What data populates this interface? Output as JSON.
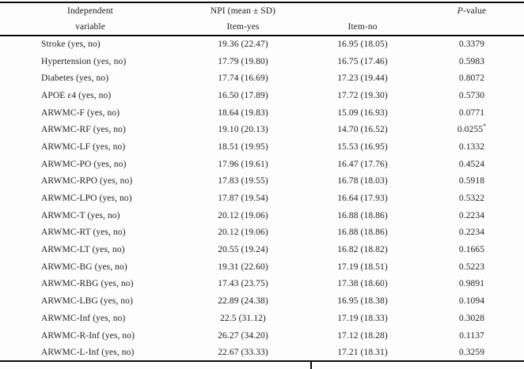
{
  "table": {
    "header": {
      "col1_line1": "Independent",
      "col1_line2": "variable",
      "npi_group": "NPI (mean ± SD)",
      "item_yes": "Item-yes",
      "item_no": "Item-no",
      "p_italic": "P",
      "p_suffix": "-value"
    },
    "rows": [
      {
        "variable": "Stroke (yes, no)",
        "item_yes": "19.36 (22.47)",
        "item_no": "16.95 (18.05)",
        "p": "0.3379"
      },
      {
        "variable": "Hypertension (yes, no)",
        "item_yes": "17.79 (19.80)",
        "item_no": "16.75 (17.46)",
        "p": "0.5983"
      },
      {
        "variable": "Diabetes (yes, no)",
        "item_yes": "17.74 (16.69)",
        "item_no": "17.23 (19.44)",
        "p": "0.8072"
      },
      {
        "variable": "APOE ε4 (yes, no)",
        "item_yes": "16.50 (17.89)",
        "item_no": "17.72 (19.30)",
        "p": "0.5730"
      },
      {
        "variable": "ARWMC-F (yes, no)",
        "item_yes": "18.64 (19.83)",
        "item_no": "15.09 (16.93)",
        "p": "0.0771"
      },
      {
        "variable": "ARWMC-RF (yes, no)",
        "item_yes": "19.10 (20.13)",
        "item_no": "14.70 (16.52)",
        "p": "0.0255",
        "p_sup": "*"
      },
      {
        "variable": "ARWMC-LF (yes, no)",
        "item_yes": "18.51 (19.95)",
        "item_no": "15.53 (16.95)",
        "p": "0.1332"
      },
      {
        "variable": "ARWMC-PO (yes, no)",
        "item_yes": "17.96 (19.61)",
        "item_no": "16.47 (17.76)",
        "p": "0.4524"
      },
      {
        "variable": "ARWMC-RPO (yes, no)",
        "item_yes": "17.83 (19.55)",
        "item_no": "16.78 (18.03)",
        "p": "0.5918"
      },
      {
        "variable": "ARWMC-LPO (yes, no)",
        "item_yes": "17.87 (19.54)",
        "item_no": "16.64 (17.93)",
        "p": "0.5322"
      },
      {
        "variable": "ARWMC-T (yes, no)",
        "item_yes": "20.12 (19.06)",
        "item_no": "16.88 (18.86)",
        "p": "0.2234"
      },
      {
        "variable": "ARWMC-RT (yes, no)",
        "item_yes": "20.12 (19.06)",
        "item_no": "16.88 (18.86)",
        "p": "0.2234"
      },
      {
        "variable": "ARWMC-LT (yes, no)",
        "item_yes": "20.55 (19.24)",
        "item_no": "16.82 (18.82)",
        "p": "0.1665"
      },
      {
        "variable": "ARWMC-BG (yes, no)",
        "item_yes": "19.31 (22.60)",
        "item_no": "17.19 (18.51)",
        "p": "0.5223"
      },
      {
        "variable": "ARWMC-RBG (yes, no)",
        "item_yes": "17.43 (23.75)",
        "item_no": "17.38 (18.60)",
        "p": "0.9891"
      },
      {
        "variable": "ARWMC-LBG (yes, no)",
        "item_yes": "22.89 (24.38)",
        "item_no": "16.95 (18.38)",
        "p": "0.1094"
      },
      {
        "variable": "ARWMC-Inf (yes, no)",
        "item_yes": "22.5 (31.12)",
        "item_no": "17.19 (18.33)",
        "p": "0.3028"
      },
      {
        "variable": "ARWMC-R-Inf (yes, no)",
        "item_yes": "26.27 (34.20)",
        "item_no": "17.12 (18.28)",
        "p": "0.1137"
      },
      {
        "variable": "ARWMC-L-Inf (yes, no)",
        "item_yes": "22.67 (33.33)",
        "item_no": "17.21 (18.31)",
        "p": "0.3259"
      }
    ]
  }
}
